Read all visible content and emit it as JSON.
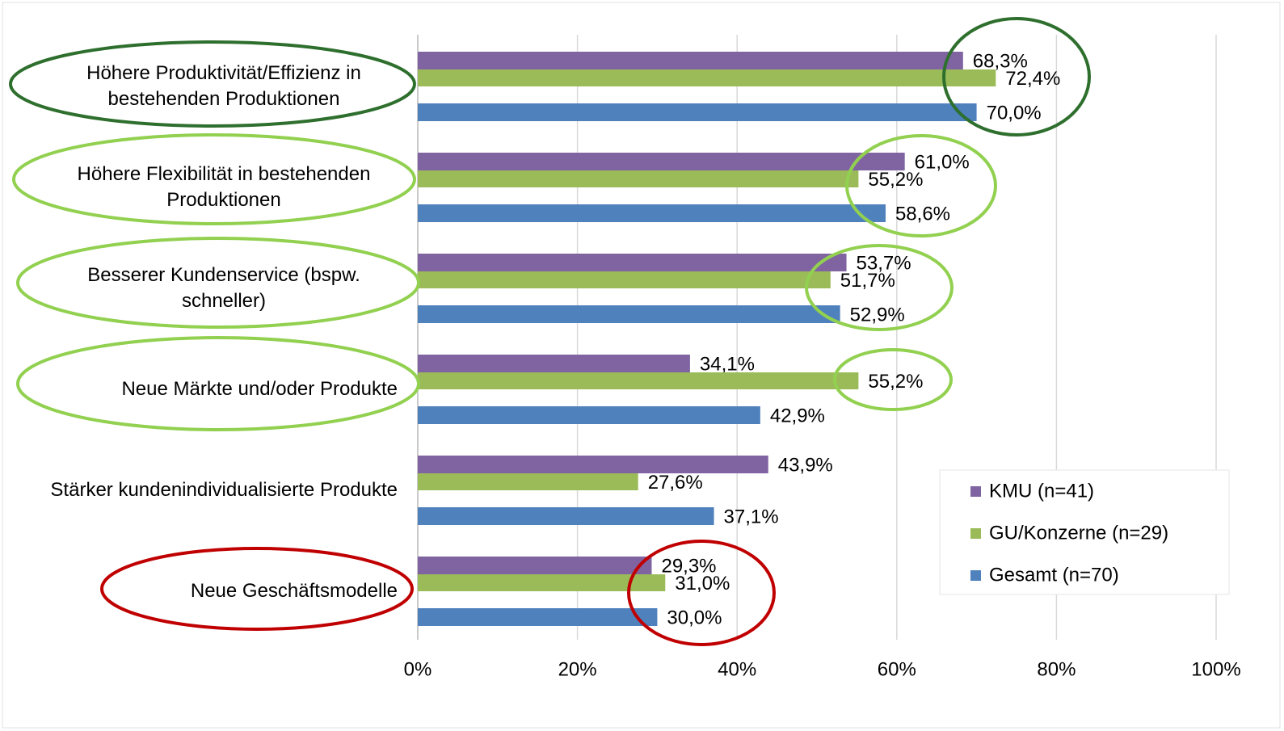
{
  "chart_data": {
    "type": "hbar",
    "categories": [
      "Höhere Produktivität/Effizienz in bestehenden Produktionen",
      "Höhere Flexibilität in bestehenden Produktionen",
      "Besserer Kundenservice (bspw. schneller)",
      "Neue Märkte und/oder Produkte",
      "Stärker kundenindividualisierte Produkte",
      "Neue Geschäftsmodelle"
    ],
    "series": [
      {
        "name": "KMU (n=41)",
        "color": "#8064a2",
        "values": [
          68.3,
          61.0,
          53.7,
          34.1,
          43.9,
          29.3
        ],
        "value_labels": [
          "68,3%",
          "61,0%",
          "53,7%",
          "34,1%",
          "43,9%",
          "29,3%"
        ]
      },
      {
        "name": "GU/Konzerne (n=29)",
        "color": "#9bbb59",
        "values": [
          72.4,
          55.2,
          51.7,
          55.2,
          27.6,
          31.0
        ],
        "value_labels": [
          "72,4%",
          "55,2%",
          "51,7%",
          "55,2%",
          "27,6%",
          "31,0%"
        ]
      },
      {
        "name": "Gesamt (n=70)",
        "color": "#4f81bd",
        "values": [
          70.0,
          58.6,
          52.9,
          42.9,
          37.1,
          30.0
        ],
        "value_labels": [
          "70,0%",
          "58,6%",
          "52,9%",
          "42,9%",
          "37,1%",
          "30,0%"
        ]
      }
    ],
    "xlim": [
      0,
      100
    ],
    "xticks": [
      {
        "value": 0,
        "label": "0%"
      },
      {
        "value": 20,
        "label": "20%"
      },
      {
        "value": 40,
        "label": "40%"
      },
      {
        "value": 60,
        "label": "60%"
      },
      {
        "value": 80,
        "label": "80%"
      },
      {
        "value": 100,
        "label": "100%"
      }
    ],
    "grid": true,
    "legend": "lower right"
  }
}
